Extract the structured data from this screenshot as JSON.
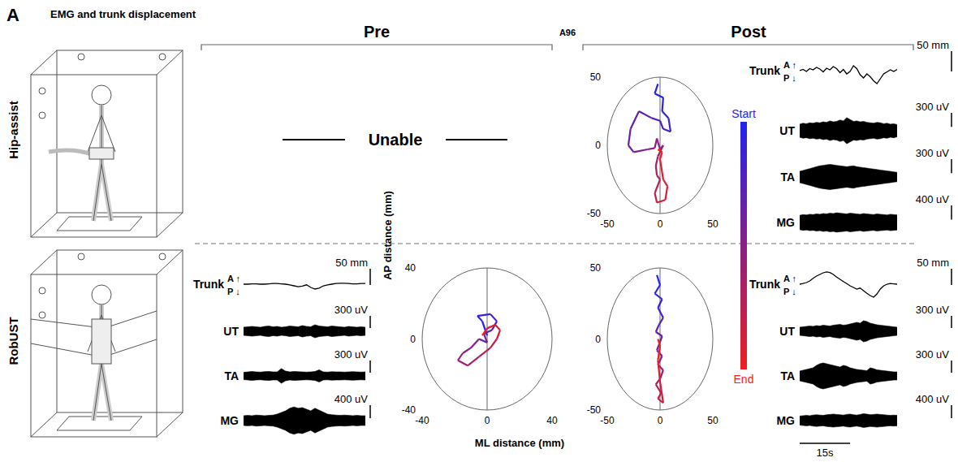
{
  "panel_label": "A",
  "header": "EMG and trunk displacement",
  "phases": {
    "pre": "Pre",
    "session": "A96",
    "post": "Post"
  },
  "rows": [
    "Hip-assist",
    "RobUST"
  ],
  "unable": "Unable",
  "direction_labels": {
    "anterior": "A",
    "posterior": "P"
  },
  "x_label": "ML distance (mm)",
  "y_label": "AP distance (mm)",
  "colorbar": {
    "start": "Start",
    "end": "End",
    "start_color": "#2222f0",
    "end_color": "#f01e1e"
  },
  "time_scale": {
    "value": 15,
    "label": "15s"
  },
  "chart_data": [
    {
      "type": "emg",
      "row": "Hip-assist",
      "phase": "Post",
      "tick_labels": false,
      "x": [
        0,
        1,
        2,
        3,
        4,
        5,
        6,
        7,
        8,
        9,
        10,
        11,
        12,
        13,
        14,
        15,
        16,
        17,
        18,
        19,
        20,
        21,
        22,
        23,
        24,
        25,
        26,
        27,
        28,
        29
      ],
      "xlim": [
        0,
        29
      ],
      "series": [
        {
          "name": "Trunk",
          "type": "line",
          "color": "#000000",
          "ylim": [
            -50,
            50
          ],
          "scale": 50,
          "scale_label": "50 mm",
          "values": [
            0,
            3,
            -2,
            5,
            2,
            8,
            4,
            -3,
            6,
            2,
            10,
            5,
            -5,
            3,
            -8,
            -2,
            12,
            5,
            -10,
            -18,
            -8,
            -15,
            -25,
            -32,
            -20,
            -8,
            -3,
            2,
            -2,
            3
          ]
        },
        {
          "name": "UT",
          "type": "band",
          "color": "#000000",
          "ylim": [
            -400,
            400
          ],
          "scale": 300,
          "scale_label": "300 uV",
          "values": [
            140,
            160,
            150,
            170,
            160,
            180,
            170,
            190,
            180,
            210,
            190,
            200,
            230,
            210,
            280,
            240,
            200,
            210,
            190,
            200,
            180,
            170,
            160,
            180,
            170,
            150,
            160,
            140,
            150,
            130
          ]
        },
        {
          "name": "TA",
          "type": "band",
          "color": "#000000",
          "ylim": [
            -400,
            400
          ],
          "scale": 300,
          "scale_label": "300 uV",
          "values": [
            120,
            140,
            160,
            180,
            200,
            220,
            240,
            250,
            260,
            270,
            260,
            250,
            240,
            230,
            220,
            230,
            240,
            220,
            210,
            200,
            190,
            180,
            170,
            160,
            150,
            140,
            130,
            120,
            110,
            100
          ]
        },
        {
          "name": "MG",
          "type": "band",
          "color": "#000000",
          "ylim": [
            -500,
            500
          ],
          "scale": 400,
          "scale_label": "400 uV",
          "values": [
            200,
            220,
            210,
            230,
            220,
            240,
            230,
            250,
            240,
            260,
            250,
            270,
            260,
            250,
            240,
            260,
            250,
            240,
            230,
            250,
            240,
            230,
            220,
            240,
            230,
            220,
            210,
            230,
            220,
            210
          ]
        }
      ]
    },
    {
      "type": "scatter",
      "row": "Hip-assist",
      "phase": "Post",
      "marker": "none",
      "line_style": "solid",
      "xlim": [
        -50,
        50
      ],
      "ylim": [
        -50,
        50
      ],
      "xticks": [
        -50,
        0,
        50
      ],
      "yticks": [
        -50,
        0,
        50
      ],
      "x": [
        -2,
        -5,
        3,
        2,
        8,
        10,
        3,
        0,
        -8,
        -20,
        -28,
        -30,
        -25,
        -12,
        -5,
        -3,
        0,
        3,
        -2,
        -4,
        -3,
        0,
        -5,
        -3,
        5,
        7,
        3,
        0,
        2,
        -2
      ],
      "y": [
        45,
        38,
        35,
        25,
        20,
        10,
        12,
        18,
        20,
        25,
        12,
        0,
        -5,
        -3,
        -2,
        5,
        -3,
        0,
        -8,
        -15,
        -22,
        -25,
        -35,
        -42,
        -40,
        -30,
        -25,
        -10,
        -5,
        -3
      ]
    },
    {
      "type": "emg",
      "row": "RobUST",
      "phase": "Pre",
      "tick_labels": false,
      "x": [
        0,
        1.25,
        2.5,
        3.75,
        5,
        6.25,
        7.5,
        8.75,
        10,
        11.25,
        12.5,
        13.75,
        15,
        16.25,
        17.5,
        18.75,
        20,
        21.25,
        22.5,
        23.75,
        25,
        26.25,
        27.5,
        28.75,
        30,
        31.25,
        32.5,
        33.75,
        35,
        36.25
      ],
      "xlim": [
        0,
        36.25
      ],
      "series": [
        {
          "name": "Trunk",
          "type": "line",
          "color": "#000000",
          "ylim": [
            -50,
            50
          ],
          "scale": 50,
          "scale_label": "50 mm",
          "values": [
            0,
            0,
            1,
            1,
            0,
            0,
            1,
            2,
            2,
            1,
            0,
            -2,
            -5,
            -8,
            -6,
            -2,
            -10,
            -15,
            -12,
            -5,
            -2,
            0,
            2,
            3,
            3,
            2,
            1,
            1,
            2,
            2
          ]
        },
        {
          "name": "UT",
          "type": "band",
          "color": "#000000",
          "ylim": [
            -400,
            400
          ],
          "scale": 300,
          "scale_label": "300 uV",
          "values": [
            100,
            110,
            120,
            110,
            100,
            120,
            130,
            110,
            120,
            100,
            110,
            130,
            120,
            110,
            140,
            120,
            110,
            160,
            130,
            120,
            110,
            130,
            120,
            110,
            100,
            120,
            110,
            100,
            110,
            100
          ]
        },
        {
          "name": "TA",
          "type": "band",
          "color": "#000000",
          "ylim": [
            -400,
            400
          ],
          "scale": 300,
          "scale_label": "300 uV",
          "values": [
            90,
            100,
            110,
            100,
            95,
            105,
            110,
            100,
            100,
            180,
            120,
            100,
            110,
            105,
            100,
            95,
            100,
            110,
            150,
            100,
            95,
            105,
            100,
            100,
            95,
            100,
            105,
            100,
            95,
            100
          ]
        },
        {
          "name": "MG",
          "type": "band",
          "color": "#000000",
          "ylim": [
            -500,
            500
          ],
          "scale": 400,
          "scale_label": "400 uV",
          "values": [
            150,
            160,
            150,
            170,
            160,
            150,
            160,
            170,
            200,
            250,
            300,
            380,
            420,
            380,
            400,
            350,
            300,
            380,
            320,
            260,
            200,
            180,
            170,
            160,
            170,
            160,
            150,
            160,
            150,
            150
          ]
        }
      ]
    },
    {
      "type": "scatter",
      "row": "RobUST",
      "phase": "Pre",
      "marker": "none",
      "line_style": "solid",
      "xlim": [
        -40,
        40
      ],
      "ylim": [
        -40,
        40
      ],
      "xticks": [
        -40,
        0,
        40
      ],
      "yticks": [
        -40,
        0,
        40
      ],
      "x": [
        0,
        -3,
        -6,
        2,
        6,
        3,
        -2,
        0,
        -5,
        -10,
        -15,
        -18,
        -12,
        -5,
        2,
        6,
        8,
        5,
        0,
        -3
      ],
      "y": [
        2,
        10,
        13,
        14,
        10,
        5,
        3,
        -2,
        0,
        -5,
        -8,
        -12,
        -15,
        -10,
        -5,
        0,
        5,
        8,
        6,
        2
      ]
    },
    {
      "type": "scatter",
      "row": "RobUST",
      "phase": "Post",
      "marker": "none",
      "line_style": "solid",
      "xlim": [
        -50,
        50
      ],
      "ylim": [
        -50,
        50
      ],
      "xticks": [
        -50,
        0,
        50
      ],
      "yticks": [
        -50,
        0,
        50
      ],
      "x": [
        -3,
        0,
        -5,
        2,
        -2,
        3,
        -1,
        -4,
        2,
        0,
        -3,
        2,
        -2,
        3,
        0,
        -4,
        1,
        -2,
        3,
        0,
        -2,
        0,
        -2
      ],
      "y": [
        45,
        38,
        32,
        28,
        22,
        15,
        10,
        5,
        2,
        -2,
        -8,
        -12,
        -18,
        -22,
        -28,
        -32,
        -38,
        -42,
        -45,
        -30,
        -15,
        -5,
        0
      ]
    },
    {
      "type": "emg",
      "row": "RobUST",
      "phase": "Post",
      "tick_labels": false,
      "x": [
        0,
        1,
        2,
        3,
        4,
        5,
        6,
        7,
        8,
        9,
        10,
        11,
        12,
        13,
        14,
        15,
        16,
        17,
        18,
        19,
        20,
        21,
        22,
        23,
        24,
        25,
        26,
        27,
        28,
        29
      ],
      "xlim": [
        0,
        29
      ],
      "series": [
        {
          "name": "Trunk",
          "type": "line",
          "color": "#000000",
          "ylim": [
            -50,
            50
          ],
          "scale": 50,
          "scale_label": "50 mm",
          "values": [
            0,
            2,
            5,
            10,
            18,
            25,
            30,
            35,
            38,
            36,
            30,
            22,
            15,
            8,
            2,
            -5,
            -10,
            -15,
            -12,
            -20,
            -28,
            -35,
            -40,
            -30,
            -15,
            -5,
            0,
            2,
            1,
            0
          ]
        },
        {
          "name": "UT",
          "type": "band",
          "color": "#000000",
          "ylim": [
            -400,
            400
          ],
          "scale": 300,
          "scale_label": "300 uV",
          "values": [
            100,
            110,
            120,
            130,
            120,
            140,
            130,
            150,
            140,
            130,
            150,
            160,
            170,
            150,
            160,
            180,
            200,
            220,
            200,
            260,
            240,
            200,
            180,
            160,
            150,
            140,
            130,
            120,
            110,
            100
          ]
        },
        {
          "name": "TA",
          "type": "band",
          "color": "#000000",
          "ylim": [
            -400,
            400
          ],
          "scale": 300,
          "scale_label": "300 uV",
          "values": [
            120,
            140,
            160,
            180,
            200,
            260,
            300,
            320,
            300,
            280,
            260,
            240,
            220,
            260,
            240,
            200,
            180,
            160,
            150,
            140,
            130,
            200,
            180,
            150,
            140,
            130,
            120,
            110,
            100,
            100
          ]
        },
        {
          "name": "MG",
          "type": "band",
          "color": "#000000",
          "ylim": [
            -500,
            500
          ],
          "scale": 400,
          "scale_label": "400 uV",
          "values": [
            140,
            150,
            160,
            150,
            170,
            180,
            170,
            160,
            180,
            190,
            200,
            190,
            180,
            170,
            190,
            200,
            180,
            170,
            190,
            210,
            200,
            180,
            190,
            200,
            190,
            180,
            170,
            160,
            170,
            160
          ]
        }
      ]
    }
  ]
}
